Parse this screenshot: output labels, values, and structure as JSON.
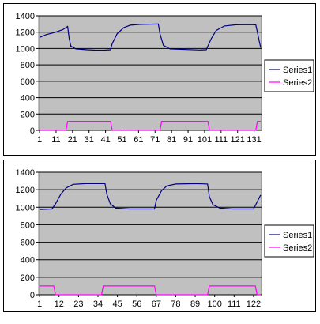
{
  "chart_data": [
    {
      "type": "line",
      "title": "",
      "xlabel": "",
      "ylabel": "",
      "ylim": [
        0,
        1400
      ],
      "yticks": [
        "0",
        "200",
        "400",
        "600",
        "800",
        "1000",
        "1200",
        "1400"
      ],
      "xticks": [
        "1",
        "11",
        "21",
        "31",
        "41",
        "51",
        "61",
        "71",
        "81",
        "91",
        "101",
        "111",
        "121",
        "131"
      ],
      "x_count": 135,
      "grid": true,
      "plot_background": "#C0C0C0",
      "legend_position": "right",
      "series": [
        {
          "name": "Series1",
          "color": "#000080",
          "points": [
            [
              1,
              1135
            ],
            [
              5,
              1170
            ],
            [
              10,
              1195
            ],
            [
              15,
              1230
            ],
            [
              18,
              1270
            ],
            [
              19,
              1120
            ],
            [
              20,
              1030
            ],
            [
              23,
              995
            ],
            [
              30,
              985
            ],
            [
              35,
              980
            ],
            [
              40,
              980
            ],
            [
              44,
              985
            ],
            [
              45,
              1060
            ],
            [
              48,
              1180
            ],
            [
              52,
              1255
            ],
            [
              56,
              1285
            ],
            [
              62,
              1295
            ],
            [
              68,
              1298
            ],
            [
              73,
              1300
            ],
            [
              74,
              1180
            ],
            [
              76,
              1040
            ],
            [
              80,
              995
            ],
            [
              90,
              988
            ],
            [
              98,
              982
            ],
            [
              102,
              985
            ],
            [
              105,
              1120
            ],
            [
              108,
              1220
            ],
            [
              113,
              1275
            ],
            [
              120,
              1290
            ],
            [
              128,
              1292
            ],
            [
              132,
              1290
            ],
            [
              133,
              1200
            ],
            [
              134,
              1100
            ],
            [
              135,
              1010
            ]
          ]
        },
        {
          "name": "Series2",
          "color": "#FF00FF",
          "points": [
            [
              1,
              0
            ],
            [
              17,
              0
            ],
            [
              18,
              110
            ],
            [
              44,
              110
            ],
            [
              45,
              0
            ],
            [
              74,
              0
            ],
            [
              75,
              110
            ],
            [
              103,
              110
            ],
            [
              104,
              0
            ],
            [
              132,
              0
            ],
            [
              133,
              110
            ],
            [
              135,
              110
            ]
          ]
        }
      ]
    },
    {
      "type": "line",
      "title": "",
      "xlabel": "",
      "ylabel": "",
      "ylim": [
        0,
        1400
      ],
      "yticks": [
        "0",
        "200",
        "400",
        "600",
        "800",
        "1000",
        "1200",
        "1400"
      ],
      "xticks": [
        "1",
        "12",
        "23",
        "34",
        "45",
        "56",
        "67",
        "78",
        "89",
        "100",
        "111",
        "122"
      ],
      "x_count": 126,
      "grid": true,
      "plot_background": "#C0C0C0",
      "legend_position": "right",
      "series": [
        {
          "name": "Series1",
          "color": "#000080",
          "points": [
            [
              1,
              975
            ],
            [
              8,
              980
            ],
            [
              10,
              1040
            ],
            [
              13,
              1150
            ],
            [
              16,
              1220
            ],
            [
              20,
              1262
            ],
            [
              27,
              1270
            ],
            [
              38,
              1270
            ],
            [
              39,
              1150
            ],
            [
              41,
              1040
            ],
            [
              44,
              990
            ],
            [
              52,
              980
            ],
            [
              66,
              980
            ],
            [
              67,
              1080
            ],
            [
              70,
              1190
            ],
            [
              73,
              1245
            ],
            [
              78,
              1265
            ],
            [
              90,
              1270
            ],
            [
              96,
              1265
            ],
            [
              97,
              1120
            ],
            [
              99,
              1030
            ],
            [
              103,
              990
            ],
            [
              110,
              980
            ],
            [
              122,
              980
            ],
            [
              124,
              1060
            ],
            [
              126,
              1140
            ]
          ]
        },
        {
          "name": "Series2",
          "color": "#FF00FF",
          "points": [
            [
              1,
              100
            ],
            [
              9,
              100
            ],
            [
              10,
              0
            ],
            [
              36,
              0
            ],
            [
              37,
              100
            ],
            [
              66,
              100
            ],
            [
              67,
              0
            ],
            [
              96,
              0
            ],
            [
              97,
              100
            ],
            [
              123,
              100
            ],
            [
              124,
              0
            ],
            [
              126,
              0
            ]
          ]
        }
      ]
    }
  ]
}
